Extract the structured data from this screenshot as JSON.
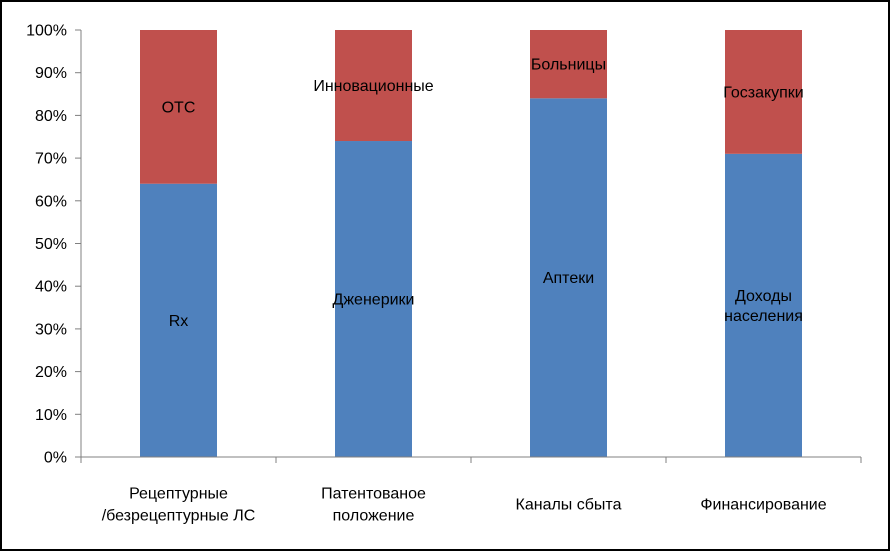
{
  "chart_data": {
    "type": "bar",
    "stacked": true,
    "percent": true,
    "categories": [
      [
        "Рецептурные",
        "/безрецептурные ЛС"
      ],
      [
        "Патентованое",
        "положение"
      ],
      [
        "Каналы сбыта"
      ],
      [
        "Финансирование"
      ]
    ],
    "series": [
      {
        "values": [
          64,
          74,
          84,
          71
        ],
        "color": "#4F81BD"
      },
      {
        "values": [
          36,
          26,
          16,
          29
        ],
        "color": "#C0504D"
      }
    ],
    "segment_labels": [
      [
        [
          "Rx"
        ],
        [
          "ОТС"
        ]
      ],
      [
        [
          "Дженерики"
        ],
        [
          "Инновационные"
        ]
      ],
      [
        [
          "Аптеки"
        ],
        [
          "Больницы"
        ]
      ],
      [
        [
          "Доходы",
          "населения"
        ],
        [
          "Госзакупки"
        ]
      ]
    ],
    "ylim": [
      0,
      100
    ],
    "yticks": [
      "0%",
      "10%",
      "20%",
      "30%",
      "40%",
      "50%",
      "60%",
      "70%",
      "80%",
      "90%",
      "100%"
    ],
    "grid": false,
    "legend": "none"
  }
}
